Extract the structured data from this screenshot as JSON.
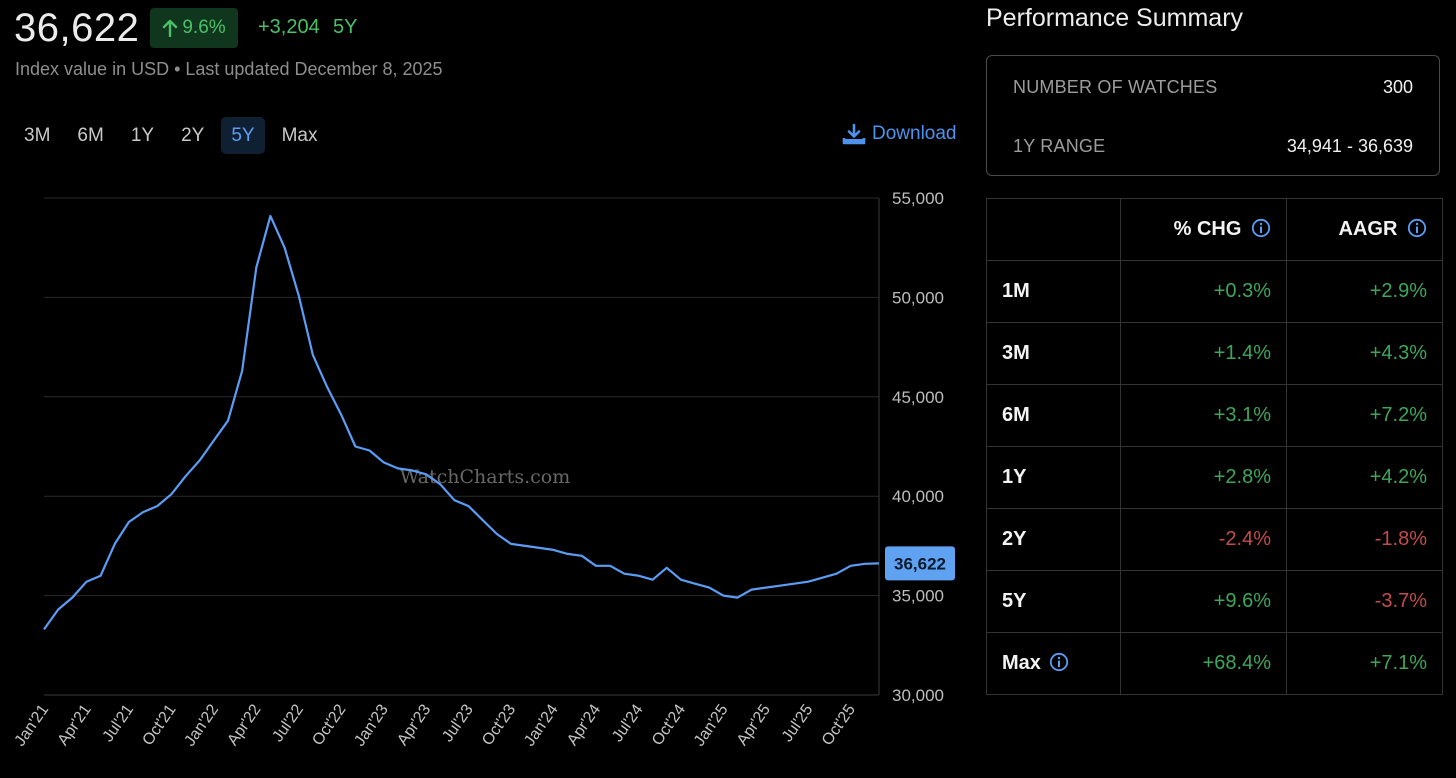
{
  "header": {
    "value": "36,622",
    "change_pct": "9.6%",
    "change_abs": "+3,204",
    "period": "5Y",
    "subtitle": "Index value in USD • Last updated December 8, 2025"
  },
  "range_tabs": [
    {
      "label": "3M",
      "active": false
    },
    {
      "label": "6M",
      "active": false
    },
    {
      "label": "1Y",
      "active": false
    },
    {
      "label": "2Y",
      "active": false
    },
    {
      "label": "5Y",
      "active": true
    },
    {
      "label": "Max",
      "active": false
    }
  ],
  "download_label": "Download",
  "performance": {
    "title": "Performance Summary",
    "summary": [
      {
        "label": "NUMBER OF WATCHES",
        "value": "300"
      },
      {
        "label": "1Y RANGE",
        "value": "34,941 - 36,639"
      }
    ],
    "columns": [
      "% CHG",
      "AAGR"
    ],
    "rows": [
      {
        "label": "1M",
        "chg": "+0.3%",
        "aagr": "+2.9%",
        "info": false
      },
      {
        "label": "3M",
        "chg": "+1.4%",
        "aagr": "+4.3%",
        "info": false
      },
      {
        "label": "6M",
        "chg": "+3.1%",
        "aagr": "+7.2%",
        "info": false
      },
      {
        "label": "1Y",
        "chg": "+2.8%",
        "aagr": "+4.2%",
        "info": false
      },
      {
        "label": "2Y",
        "chg": "-2.4%",
        "aagr": "-1.8%",
        "info": false
      },
      {
        "label": "5Y",
        "chg": "+9.6%",
        "aagr": "-3.7%",
        "info": false
      },
      {
        "label": "Max",
        "chg": "+68.4%",
        "aagr": "+7.1%",
        "info": true
      }
    ]
  },
  "colors": {
    "positive": "#3ea65a",
    "negative": "#c24c4c",
    "line": "#5b9df5",
    "accent": "#4d93ee"
  },
  "chart_data": {
    "type": "line",
    "watermark": "WatchCharts.com",
    "ylim": [
      30000,
      55000
    ],
    "yticks": [
      "55,000",
      "50,000",
      "45,000",
      "40,000",
      "35,000",
      "30,000"
    ],
    "ytick_values": [
      55000,
      50000,
      45000,
      40000,
      35000,
      30000
    ],
    "xticks": [
      "Jan'21",
      "Apr'21",
      "Jul'21",
      "Oct'21",
      "Jan'22",
      "Apr'22",
      "Jul'22",
      "Oct'22",
      "Jan'23",
      "Apr'23",
      "Jul'23",
      "Oct'23",
      "Jan'24",
      "Apr'24",
      "Jul'24",
      "Oct'24",
      "Jan'25",
      "Apr'25",
      "Jul'25",
      "Oct'25"
    ],
    "last_value_label": "36,622",
    "last_value": 36622,
    "series": [
      {
        "x": [
          "2021-01",
          "2021-02",
          "2021-03",
          "2021-04",
          "2021-05",
          "2021-06",
          "2021-07",
          "2021-08",
          "2021-09",
          "2021-10",
          "2021-11",
          "2021-12",
          "2022-01",
          "2022-02",
          "2022-03",
          "2022-04",
          "2022-05",
          "2022-06",
          "2022-07",
          "2022-08",
          "2022-09",
          "2022-10",
          "2022-11",
          "2022-12",
          "2023-01",
          "2023-02",
          "2023-03",
          "2023-04",
          "2023-05",
          "2023-06",
          "2023-07",
          "2023-08",
          "2023-09",
          "2023-10",
          "2023-11",
          "2023-12",
          "2024-01",
          "2024-02",
          "2024-03",
          "2024-04",
          "2024-05",
          "2024-06",
          "2024-07",
          "2024-08",
          "2024-09",
          "2024-10",
          "2024-11",
          "2024-12",
          "2025-01",
          "2025-02",
          "2025-03",
          "2025-04",
          "2025-05",
          "2025-06",
          "2025-07",
          "2025-08",
          "2025-09",
          "2025-10",
          "2025-11",
          "2025-12"
        ],
        "values": [
          33300,
          34300,
          34900,
          35700,
          36000,
          37600,
          38700,
          39200,
          39500,
          40100,
          41000,
          41800,
          42800,
          43800,
          46300,
          51500,
          54100,
          52500,
          50100,
          47100,
          45500,
          44100,
          42500,
          42300,
          41700,
          41400,
          41300,
          41100,
          40600,
          39800,
          39500,
          38800,
          38100,
          37600,
          37500,
          37400,
          37300,
          37100,
          37000,
          36500,
          36500,
          36100,
          36000,
          35800,
          36400,
          35800,
          35600,
          35400,
          35000,
          34900,
          35300,
          35400,
          35500,
          35600,
          35700,
          35900,
          36100,
          36500,
          36600,
          36622
        ]
      }
    ]
  }
}
